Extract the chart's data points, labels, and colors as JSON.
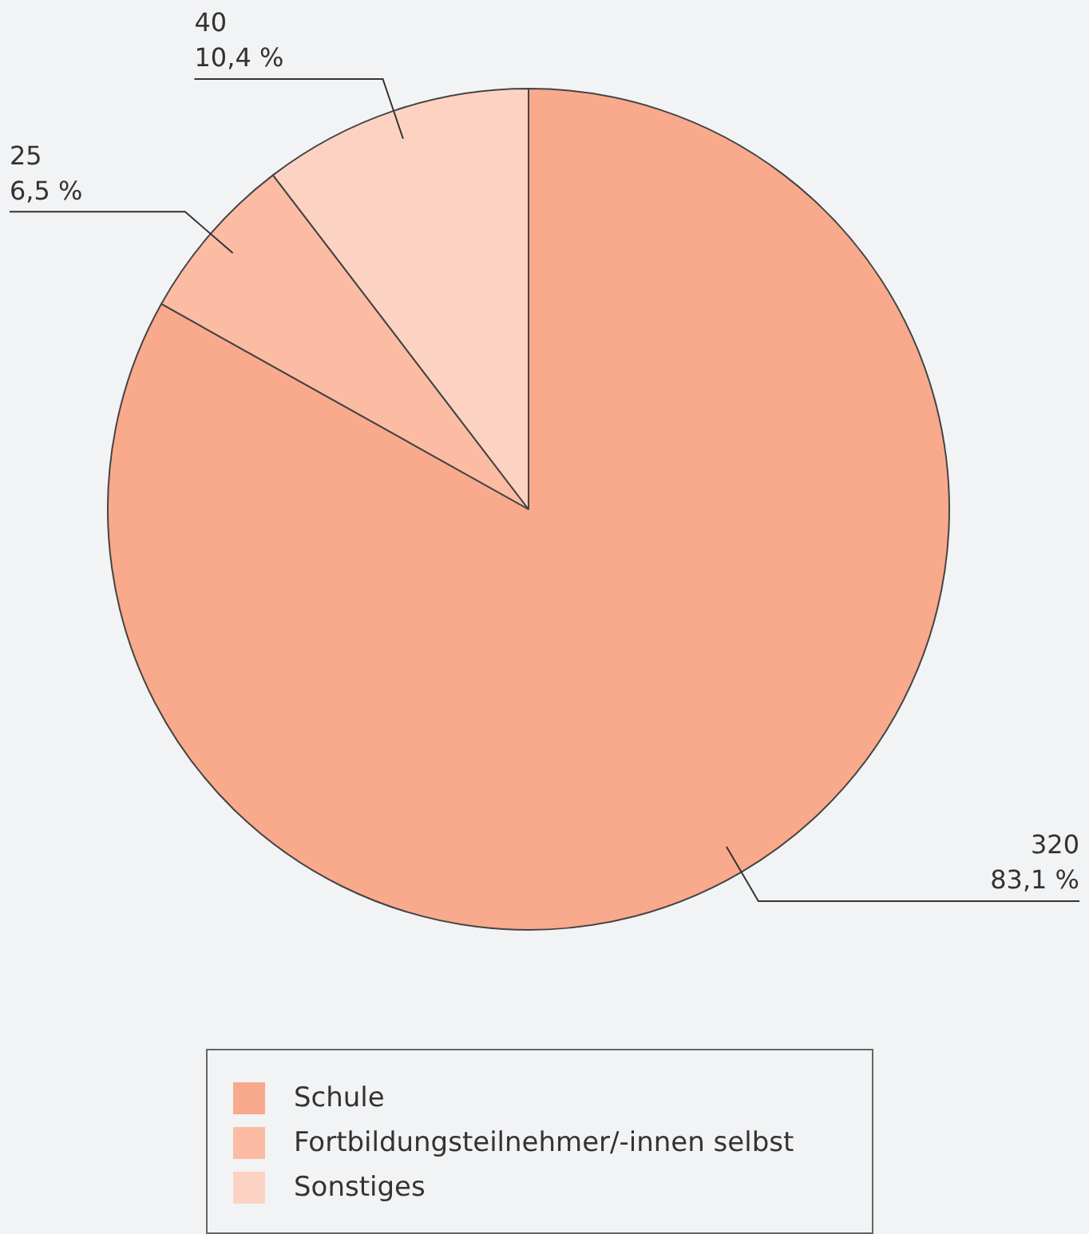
{
  "chart_data": {
    "type": "pie",
    "categories": [
      "Schule",
      "Fortbildungsteilnehmer/-innen selbst",
      "Sonstiges"
    ],
    "values": [
      320,
      25,
      40
    ],
    "colors": [
      "#f9a98c",
      "#fbbca3",
      "#fcd3c2"
    ],
    "value_labels": [
      "320\n83,1 %",
      "25\n6,5 %",
      "40\n10,4 %"
    ],
    "legend": "bottom"
  }
}
